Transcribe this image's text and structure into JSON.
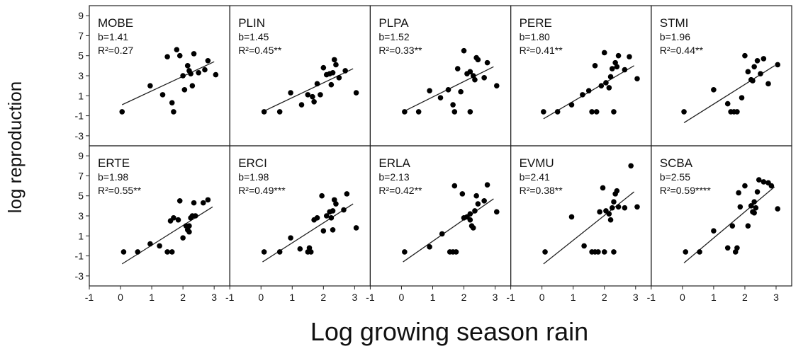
{
  "figure": {
    "ylabel": "log reproduction",
    "xlabel": "Log growing season rain"
  },
  "chart_data": [
    {
      "type": "scatter",
      "title": "MOBE",
      "slope_label": "b=1.41",
      "r2_label": "R²=0.27",
      "xlim": [
        -1,
        3.5
      ],
      "ylim": [
        -4,
        10
      ],
      "yticks": [
        9,
        7,
        5,
        3,
        1,
        -1,
        -3
      ],
      "xticks": [],
      "fit": {
        "x": [
          0.05,
          3.0
        ],
        "y": [
          0.1,
          4.4
        ]
      },
      "points": [
        [
          0.05,
          -0.6
        ],
        [
          0.95,
          2.0
        ],
        [
          1.35,
          1.1
        ],
        [
          1.5,
          4.9
        ],
        [
          1.65,
          0.3
        ],
        [
          1.7,
          -0.6
        ],
        [
          1.8,
          5.6
        ],
        [
          1.9,
          5.0
        ],
        [
          2.0,
          3.0
        ],
        [
          2.05,
          1.6
        ],
        [
          2.15,
          4.0
        ],
        [
          2.2,
          3.5
        ],
        [
          2.25,
          3.2
        ],
        [
          2.3,
          2.0
        ],
        [
          2.35,
          5.2
        ],
        [
          2.5,
          3.3
        ],
        [
          2.7,
          3.6
        ],
        [
          2.8,
          4.5
        ],
        [
          3.05,
          3.1
        ]
      ]
    },
    {
      "type": "scatter",
      "title": "PLIN",
      "slope_label": "b=1.45",
      "r2_label": "R²=0.45**",
      "xlim": [
        -1,
        3.5
      ],
      "ylim": [
        -4,
        10
      ],
      "yticks": [],
      "xticks": [],
      "fit": {
        "x": [
          0.05,
          2.95
        ],
        "y": [
          -0.6,
          3.7
        ]
      },
      "points": [
        [
          0.1,
          -0.6
        ],
        [
          0.6,
          -0.6
        ],
        [
          0.95,
          1.3
        ],
        [
          1.3,
          0.1
        ],
        [
          1.5,
          1.1
        ],
        [
          1.65,
          0.9
        ],
        [
          1.7,
          0.4
        ],
        [
          1.8,
          2.2
        ],
        [
          1.9,
          1.1
        ],
        [
          2.0,
          3.8
        ],
        [
          2.1,
          3.1
        ],
        [
          2.2,
          3.2
        ],
        [
          2.25,
          2.1
        ],
        [
          2.3,
          3.3
        ],
        [
          2.35,
          4.6
        ],
        [
          2.4,
          4.1
        ],
        [
          2.5,
          2.8
        ],
        [
          2.7,
          3.5
        ],
        [
          3.05,
          1.3
        ]
      ]
    },
    {
      "type": "scatter",
      "title": "PLPA",
      "slope_label": "b=1.52",
      "r2_label": "R²=0.33**",
      "xlim": [
        -1,
        3.5
      ],
      "ylim": [
        -4,
        10
      ],
      "yticks": [],
      "xticks": [],
      "fit": {
        "x": [
          0.05,
          2.95
        ],
        "y": [
          -0.6,
          3.9
        ]
      },
      "points": [
        [
          0.1,
          -0.6
        ],
        [
          0.55,
          -0.6
        ],
        [
          0.9,
          1.5
        ],
        [
          1.25,
          0.8
        ],
        [
          1.5,
          1.6
        ],
        [
          1.65,
          0.1
        ],
        [
          1.7,
          -0.6
        ],
        [
          1.8,
          3.7
        ],
        [
          1.9,
          1.4
        ],
        [
          2.0,
          5.5
        ],
        [
          2.1,
          3.2
        ],
        [
          2.2,
          3.4
        ],
        [
          2.3,
          3.0
        ],
        [
          2.35,
          2.6
        ],
        [
          2.4,
          4.8
        ],
        [
          2.45,
          4.6
        ],
        [
          2.65,
          2.8
        ],
        [
          2.75,
          4.3
        ],
        [
          3.05,
          2.0
        ],
        [
          2.2,
          -0.6
        ]
      ]
    },
    {
      "type": "scatter",
      "title": "PERE",
      "slope_label": "b=1.80",
      "r2_label": "R²=0.41**",
      "xlim": [
        -1,
        3.5
      ],
      "ylim": [
        -4,
        10
      ],
      "yticks": [],
      "xticks": [],
      "fit": {
        "x": [
          0.05,
          2.95
        ],
        "y": [
          -1.3,
          4.0
        ]
      },
      "points": [
        [
          0.05,
          -0.6
        ],
        [
          0.5,
          -0.6
        ],
        [
          0.95,
          0.1
        ],
        [
          1.3,
          1.1
        ],
        [
          1.5,
          1.5
        ],
        [
          1.6,
          -0.6
        ],
        [
          1.75,
          -0.6
        ],
        [
          1.7,
          4.0
        ],
        [
          1.9,
          2.0
        ],
        [
          2.0,
          5.3
        ],
        [
          2.05,
          2.3
        ],
        [
          2.15,
          1.8
        ],
        [
          2.2,
          2.9
        ],
        [
          2.25,
          3.7
        ],
        [
          2.35,
          4.3
        ],
        [
          2.4,
          3.9
        ],
        [
          2.3,
          -0.6
        ],
        [
          2.65,
          3.6
        ],
        [
          2.8,
          4.9
        ],
        [
          3.05,
          2.7
        ],
        [
          2.45,
          5.0
        ]
      ]
    },
    {
      "type": "scatter",
      "title": "STMI",
      "slope_label": "b=1.96",
      "r2_label": "R²=0.44**",
      "xlim": [
        -1,
        3.5
      ],
      "ylim": [
        -4,
        10
      ],
      "yticks": [],
      "xticks": [],
      "fit": {
        "x": [
          0.05,
          2.95
        ],
        "y": [
          -1.7,
          4.0
        ]
      },
      "points": [
        [
          0.05,
          -0.6
        ],
        [
          1.0,
          1.6
        ],
        [
          1.45,
          0.2
        ],
        [
          1.55,
          -0.6
        ],
        [
          1.65,
          -0.6
        ],
        [
          1.75,
          -0.6
        ],
        [
          1.9,
          0.8
        ],
        [
          2.0,
          5.0
        ],
        [
          2.1,
          3.4
        ],
        [
          2.2,
          2.6
        ],
        [
          2.25,
          2.5
        ],
        [
          2.3,
          3.9
        ],
        [
          2.4,
          4.5
        ],
        [
          2.6,
          4.7
        ],
        [
          2.75,
          2.2
        ],
        [
          3.05,
          4.1
        ],
        [
          2.5,
          3.2
        ]
      ]
    },
    {
      "type": "scatter",
      "title": "ERTE",
      "slope_label": "b=1.98",
      "r2_label": "R²=0.55**",
      "xlim": [
        -1,
        3.5
      ],
      "ylim": [
        -4,
        10
      ],
      "yticks": [
        9,
        7,
        5,
        3,
        1,
        -1,
        -3
      ],
      "xticks": [
        -1,
        0,
        1,
        2,
        3
      ],
      "fit": {
        "x": [
          0.05,
          2.95
        ],
        "y": [
          -1.8,
          3.9
        ]
      },
      "points": [
        [
          0.1,
          -0.6
        ],
        [
          0.55,
          -0.6
        ],
        [
          0.95,
          0.2
        ],
        [
          1.25,
          0.0
        ],
        [
          1.5,
          -0.6
        ],
        [
          1.65,
          -0.6
        ],
        [
          1.6,
          2.5
        ],
        [
          1.7,
          2.8
        ],
        [
          1.85,
          2.6
        ],
        [
          1.9,
          4.5
        ],
        [
          2.0,
          0.8
        ],
        [
          2.1,
          2.0
        ],
        [
          2.15,
          1.6
        ],
        [
          2.2,
          2.0
        ],
        [
          2.25,
          2.8
        ],
        [
          2.3,
          3.0
        ],
        [
          2.35,
          4.3
        ],
        [
          2.4,
          3.0
        ],
        [
          2.65,
          4.3
        ],
        [
          2.8,
          4.6
        ],
        [
          2.2,
          1.4
        ]
      ]
    },
    {
      "type": "scatter",
      "title": "ERCI",
      "slope_label": "b=1.98",
      "r2_label": "R²=0.49***",
      "xlim": [
        -1,
        3.5
      ],
      "ylim": [
        -4,
        10
      ],
      "yticks": [],
      "xticks": [
        -1,
        0,
        1,
        2,
        3
      ],
      "fit": {
        "x": [
          0.05,
          2.95
        ],
        "y": [
          -1.6,
          4.2
        ]
      },
      "points": [
        [
          0.1,
          -0.6
        ],
        [
          0.6,
          -0.6
        ],
        [
          0.95,
          0.8
        ],
        [
          1.25,
          -0.3
        ],
        [
          1.5,
          -0.6
        ],
        [
          1.6,
          -0.6
        ],
        [
          1.7,
          2.6
        ],
        [
          1.8,
          2.8
        ],
        [
          1.95,
          5.0
        ],
        [
          2.0,
          1.5
        ],
        [
          2.1,
          3.0
        ],
        [
          2.2,
          3.4
        ],
        [
          2.25,
          2.8
        ],
        [
          2.3,
          3.5
        ],
        [
          2.35,
          4.6
        ],
        [
          2.4,
          4.2
        ],
        [
          2.3,
          1.6
        ],
        [
          2.65,
          3.6
        ],
        [
          2.75,
          5.2
        ],
        [
          3.05,
          1.8
        ],
        [
          1.55,
          -0.2
        ]
      ]
    },
    {
      "type": "scatter",
      "title": "ERLA",
      "slope_label": "b=2.13",
      "r2_label": "R²=0.42**",
      "xlim": [
        -1,
        3.5
      ],
      "ylim": [
        -4,
        10
      ],
      "yticks": [],
      "xticks": [
        -1,
        0,
        1,
        2,
        3
      ],
      "fit": {
        "x": [
          0.05,
          2.95
        ],
        "y": [
          -1.6,
          4.7
        ]
      },
      "points": [
        [
          0.1,
          -0.6
        ],
        [
          0.9,
          -0.1
        ],
        [
          1.3,
          1.2
        ],
        [
          1.55,
          -0.6
        ],
        [
          1.65,
          -0.6
        ],
        [
          1.75,
          -0.6
        ],
        [
          1.7,
          6.0
        ],
        [
          1.95,
          5.2
        ],
        [
          2.0,
          2.8
        ],
        [
          2.1,
          2.9
        ],
        [
          2.2,
          3.2
        ],
        [
          2.25,
          2.0
        ],
        [
          2.3,
          1.8
        ],
        [
          2.35,
          3.5
        ],
        [
          2.4,
          5.0
        ],
        [
          2.45,
          4.2
        ],
        [
          2.65,
          4.5
        ],
        [
          2.75,
          6.1
        ],
        [
          3.05,
          3.4
        ],
        [
          2.2,
          2.6
        ]
      ]
    },
    {
      "type": "scatter",
      "title": "EVMU",
      "slope_label": "b=2.41",
      "r2_label": "R²=0.38**",
      "xlim": [
        -1,
        3.5
      ],
      "ylim": [
        -4,
        10
      ],
      "yticks": [],
      "xticks": [
        -1,
        0,
        1,
        2,
        3
      ],
      "fit": {
        "x": [
          0.05,
          2.95
        ],
        "y": [
          -1.8,
          5.4
        ]
      },
      "points": [
        [
          0.1,
          -0.6
        ],
        [
          0.95,
          2.9
        ],
        [
          1.35,
          0.0
        ],
        [
          1.6,
          -0.6
        ],
        [
          1.7,
          -0.6
        ],
        [
          1.8,
          -0.6
        ],
        [
          1.85,
          3.4
        ],
        [
          1.95,
          5.8
        ],
        [
          2.05,
          3.5
        ],
        [
          2.15,
          3.2
        ],
        [
          2.2,
          2.6
        ],
        [
          2.25,
          3.8
        ],
        [
          2.3,
          4.4
        ],
        [
          2.35,
          5.2
        ],
        [
          2.4,
          5.5
        ],
        [
          2.45,
          3.9
        ],
        [
          2.3,
          -0.6
        ],
        [
          2.65,
          3.8
        ],
        [
          2.85,
          8.0
        ],
        [
          3.05,
          3.9
        ],
        [
          2.0,
          -0.6
        ]
      ]
    },
    {
      "type": "scatter",
      "title": "SCBA",
      "slope_label": "b=2.55",
      "r2_label": "R²=0.59****",
      "xlim": [
        -1,
        3.5
      ],
      "ylim": [
        -4,
        10
      ],
      "yticks": [],
      "xticks": [
        -1,
        0,
        1,
        2,
        3
      ],
      "fit": {
        "x": [
          0.05,
          2.95
        ],
        "y": [
          -1.7,
          5.9
        ]
      },
      "points": [
        [
          0.1,
          -0.6
        ],
        [
          0.55,
          -0.6
        ],
        [
          1.0,
          1.5
        ],
        [
          1.45,
          -0.2
        ],
        [
          1.6,
          2.0
        ],
        [
          1.7,
          -0.6
        ],
        [
          1.75,
          -0.2
        ],
        [
          1.8,
          5.3
        ],
        [
          1.85,
          3.9
        ],
        [
          2.0,
          6.0
        ],
        [
          2.1,
          2.0
        ],
        [
          2.2,
          4.0
        ],
        [
          2.25,
          3.4
        ],
        [
          2.3,
          4.4
        ],
        [
          2.35,
          3.8
        ],
        [
          2.4,
          5.4
        ],
        [
          2.45,
          6.6
        ],
        [
          2.6,
          6.4
        ],
        [
          2.75,
          6.3
        ],
        [
          2.85,
          6.0
        ],
        [
          3.05,
          3.7
        ],
        [
          2.3,
          3.3
        ]
      ]
    }
  ]
}
